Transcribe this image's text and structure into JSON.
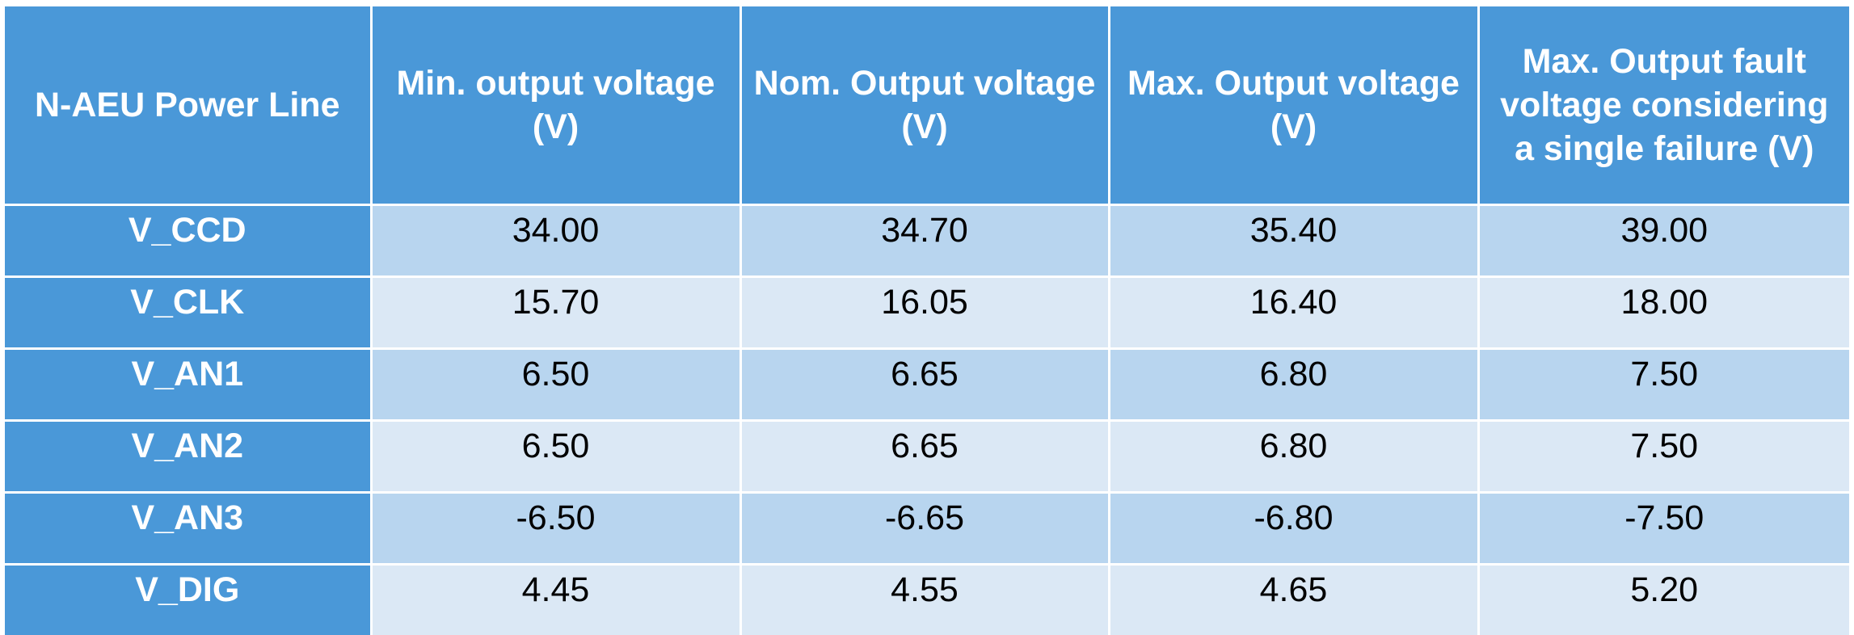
{
  "table": {
    "headers": [
      "N-AEU Power Line",
      "Min. output voltage (V)",
      "Nom. Output voltage (V)",
      "Max. Output voltage (V)",
      "Max. Output fault voltage considering a single failure (V)"
    ],
    "rows": [
      {
        "line": "V_CCD",
        "min": "34.00",
        "nom": "34.70",
        "max": "35.40",
        "fault": "39.00"
      },
      {
        "line": "V_CLK",
        "min": "15.70",
        "nom": "16.05",
        "max": "16.40",
        "fault": "18.00"
      },
      {
        "line": "V_AN1",
        "min": "6.50",
        "nom": "6.65",
        "max": "6.80",
        "fault": "7.50"
      },
      {
        "line": "V_AN2",
        "min": "6.50",
        "nom": "6.65",
        "max": "6.80",
        "fault": "7.50"
      },
      {
        "line": "V_AN3",
        "min": "-6.50",
        "nom": "-6.65",
        "max": "-6.80",
        "fault": "-7.50"
      },
      {
        "line": "V_DIG",
        "min": "4.45",
        "nom": "4.55",
        "max": "4.65",
        "fault": "5.20"
      }
    ]
  },
  "colors": {
    "header_bg": "#4a98d8",
    "row_odd_bg": "#b8d5ef",
    "row_even_bg": "#dbe8f5",
    "header_text": "#ffffff"
  }
}
